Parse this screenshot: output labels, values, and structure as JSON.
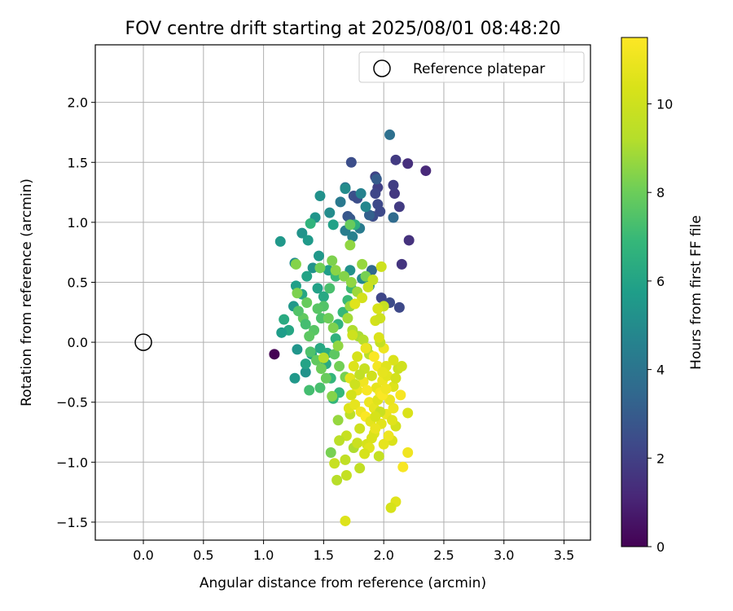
{
  "chart_data": {
    "type": "scatter",
    "title": "FOV centre drift starting at 2025/08/01 08:48:20",
    "xlabel": "Angular distance from reference (arcmin)",
    "ylabel": "Rotation from reference (arcmin)",
    "xlim": [
      -0.4,
      3.72
    ],
    "ylim": [
      -1.65,
      2.48
    ],
    "xticks": [
      0.0,
      0.5,
      1.0,
      1.5,
      2.0,
      2.5,
      3.0,
      3.5
    ],
    "xtick_labels": [
      "0.0",
      "0.5",
      "1.0",
      "1.5",
      "2.0",
      "2.5",
      "3.0",
      "3.5"
    ],
    "yticks": [
      -1.5,
      -1.0,
      -0.5,
      0.0,
      0.5,
      1.0,
      1.5,
      2.0
    ],
    "ytick_labels": [
      "−1.5",
      "−1.0",
      "−0.5",
      "0.0",
      "0.5",
      "1.0",
      "1.5",
      "2.0"
    ],
    "grid": true,
    "legend": {
      "placement": "top-right",
      "entries": [
        "Reference platepar"
      ]
    },
    "colorbar": {
      "label": "Hours from first FF file",
      "colormap": "viridis",
      "range": [
        0,
        11.5
      ],
      "ticks": [
        0,
        2,
        4,
        6,
        8,
        10
      ],
      "tick_labels": [
        "0",
        "2",
        "4",
        "6",
        "8",
        "10"
      ]
    },
    "reference_point": {
      "x": 0.0,
      "y": 0.0
    },
    "series": [
      {
        "points": [
          [
            1.09,
            -0.1,
            0.0
          ],
          [
            2.35,
            1.43,
            1.2
          ],
          [
            2.2,
            1.49,
            1.4
          ],
          [
            2.21,
            0.85,
            1.5
          ],
          [
            2.15,
            0.65,
            1.6
          ],
          [
            2.1,
            1.52,
            1.8
          ],
          [
            2.13,
            1.13,
            1.8
          ],
          [
            2.09,
            1.24,
            1.7
          ],
          [
            2.08,
            1.31,
            1.9
          ],
          [
            1.95,
            1.29,
            2.0
          ],
          [
            1.93,
            1.38,
            2.1
          ],
          [
            1.93,
            1.24,
            2.2
          ],
          [
            1.95,
            1.15,
            2.3
          ],
          [
            1.97,
            1.09,
            2.3
          ],
          [
            1.91,
            1.05,
            2.4
          ],
          [
            1.98,
            0.37,
            2.2
          ],
          [
            2.05,
            0.33,
            2.4
          ],
          [
            2.13,
            0.29,
            2.3
          ],
          [
            1.73,
            1.5,
            2.5
          ],
          [
            1.75,
            1.22,
            2.6
          ],
          [
            1.78,
            1.2,
            2.5
          ],
          [
            1.7,
            1.05,
            2.8
          ],
          [
            1.72,
            1.03,
            2.9
          ],
          [
            1.94,
            1.36,
            3.0
          ],
          [
            1.88,
            1.06,
            3.2
          ],
          [
            2.08,
            1.04,
            3.6
          ],
          [
            2.05,
            1.73,
            3.8
          ],
          [
            1.9,
            0.6,
            3.5
          ],
          [
            1.68,
            1.29,
            4.0
          ],
          [
            1.64,
            1.17,
            4.2
          ],
          [
            1.68,
            0.93,
            4.4
          ],
          [
            1.74,
            0.88,
            4.5
          ],
          [
            1.81,
            1.24,
            4.6
          ],
          [
            1.85,
            1.13,
            4.8
          ],
          [
            1.8,
            0.95,
            4.3
          ],
          [
            1.55,
            1.08,
            5.0
          ],
          [
            1.47,
            1.22,
            5.2
          ],
          [
            1.43,
            1.04,
            5.4
          ],
          [
            1.32,
            0.91,
            5.3
          ],
          [
            1.14,
            0.84,
            5.5
          ],
          [
            1.37,
            0.85,
            5.6
          ],
          [
            1.58,
            0.98,
            5.9
          ],
          [
            1.68,
            1.28,
            5.0
          ],
          [
            1.76,
            0.98,
            6.5
          ],
          [
            1.39,
            0.99,
            6.7
          ],
          [
            1.26,
            0.66,
            5.1
          ],
          [
            1.41,
            0.62,
            5.3
          ],
          [
            1.46,
            0.72,
            5.5
          ],
          [
            1.54,
            0.6,
            5.7
          ],
          [
            1.72,
            0.6,
            5.2
          ],
          [
            1.82,
            0.53,
            4.9
          ],
          [
            1.88,
            0.47,
            5.0
          ],
          [
            1.36,
            0.55,
            6.0
          ],
          [
            1.27,
            0.47,
            5.8
          ],
          [
            1.32,
            0.4,
            6.1
          ],
          [
            1.45,
            0.45,
            5.9
          ],
          [
            1.5,
            0.38,
            6.2
          ],
          [
            1.25,
            0.3,
            5.5
          ],
          [
            1.17,
            0.19,
            6.3
          ],
          [
            1.21,
            0.1,
            6.1
          ],
          [
            1.15,
            0.08,
            5.7
          ],
          [
            1.28,
            -0.06,
            5.4
          ],
          [
            1.35,
            -0.25,
            5.3
          ],
          [
            1.26,
            -0.3,
            5.5
          ],
          [
            1.35,
            -0.18,
            6.0
          ],
          [
            1.4,
            -0.1,
            5.9
          ],
          [
            1.47,
            -0.05,
            6.2
          ],
          [
            1.52,
            -0.18,
            6.3
          ],
          [
            1.56,
            -0.3,
            6.8
          ],
          [
            1.63,
            -0.42,
            6.9
          ],
          [
            1.58,
            -0.47,
            6.8
          ],
          [
            1.38,
            -0.4,
            7.2
          ],
          [
            1.47,
            -0.38,
            7.3
          ],
          [
            1.53,
            -0.09,
            6.4
          ],
          [
            1.6,
            0.03,
            6.6
          ],
          [
            1.62,
            0.15,
            6.7
          ],
          [
            1.66,
            0.25,
            6.9
          ],
          [
            1.7,
            0.35,
            7.0
          ],
          [
            1.73,
            0.45,
            7.1
          ],
          [
            1.6,
            0.55,
            7.0
          ],
          [
            1.55,
            0.45,
            7.3
          ],
          [
            1.5,
            0.3,
            7.5
          ],
          [
            1.48,
            0.2,
            7.4
          ],
          [
            1.42,
            0.1,
            7.6
          ],
          [
            1.38,
            0.05,
            7.7
          ],
          [
            1.33,
            0.2,
            7.8
          ],
          [
            1.29,
            0.26,
            7.5
          ],
          [
            1.36,
            0.33,
            7.9
          ],
          [
            1.45,
            0.28,
            7.6
          ],
          [
            1.35,
            0.15,
            7.2
          ],
          [
            1.39,
            -0.08,
            7.4
          ],
          [
            1.44,
            -0.15,
            7.8
          ],
          [
            1.48,
            -0.22,
            8.0
          ],
          [
            1.52,
            -0.3,
            7.9
          ],
          [
            1.59,
            -0.1,
            7.7
          ],
          [
            1.63,
            -0.2,
            8.1
          ],
          [
            1.68,
            -0.29,
            8.2
          ],
          [
            1.58,
            0.12,
            8.3
          ],
          [
            1.54,
            0.2,
            8.0
          ],
          [
            1.47,
            0.62,
            8.1
          ],
          [
            1.57,
            0.68,
            8.3
          ],
          [
            1.6,
            0.6,
            8.5
          ],
          [
            1.67,
            0.55,
            8.4
          ],
          [
            1.73,
            0.5,
            8.6
          ],
          [
            1.78,
            0.42,
            8.8
          ],
          [
            1.72,
            0.3,
            8.7
          ],
          [
            1.7,
            0.2,
            8.9
          ],
          [
            1.74,
            0.1,
            9.1
          ],
          [
            1.79,
            0.05,
            9.0
          ],
          [
            1.83,
            0.02,
            9.2
          ],
          [
            1.86,
            -0.05,
            9.3
          ],
          [
            1.88,
            -0.1,
            9.4
          ],
          [
            1.72,
            0.81,
            8.6
          ],
          [
            1.72,
            0.98,
            7.9
          ],
          [
            1.28,
            0.41,
            8.3
          ],
          [
            1.27,
            0.65,
            8.4
          ],
          [
            1.82,
            0.65,
            8.7
          ],
          [
            1.85,
            0.55,
            8.2
          ],
          [
            1.62,
            -0.03,
            8.6
          ],
          [
            1.5,
            -0.13,
            9.2
          ],
          [
            1.57,
            -0.45,
            8.4
          ],
          [
            1.62,
            -0.65,
            8.7
          ],
          [
            1.72,
            -0.6,
            9.5
          ],
          [
            1.75,
            -0.88,
            9.1
          ],
          [
            1.78,
            -0.84,
            9.9
          ],
          [
            1.8,
            -0.72,
            10.0
          ],
          [
            1.69,
            -0.78,
            9.8
          ],
          [
            1.68,
            -0.98,
            9.6
          ],
          [
            1.63,
            -0.82,
            9.4
          ],
          [
            1.56,
            -0.92,
            8.2
          ],
          [
            1.59,
            -1.01,
            9.8
          ],
          [
            1.61,
            -1.15,
            9.3
          ],
          [
            1.69,
            -1.11,
            9.7
          ],
          [
            1.8,
            -1.05,
            9.6
          ],
          [
            1.68,
            -1.49,
            10.5
          ],
          [
            1.96,
            -0.95,
            9.7
          ],
          [
            1.86,
            -0.85,
            10.3
          ],
          [
            1.92,
            -0.76,
            10.5
          ],
          [
            1.98,
            -0.68,
            10.7
          ],
          [
            2.02,
            -0.6,
            10.9
          ],
          [
            2.08,
            -0.55,
            11.0
          ],
          [
            2.14,
            -0.44,
            11.3
          ],
          [
            2.2,
            -0.59,
            10.4
          ],
          [
            2.1,
            -0.7,
            10.2
          ],
          [
            2.07,
            -0.82,
            10.4
          ],
          [
            2.2,
            -0.92,
            11.1
          ],
          [
            2.16,
            -1.04,
            11.3
          ],
          [
            2.1,
            -1.33,
            10.6
          ],
          [
            2.06,
            -1.38,
            10.3
          ],
          [
            1.94,
            -0.38,
            10.8
          ],
          [
            1.99,
            -0.32,
            11.0
          ],
          [
            2.03,
            -0.28,
            10.7
          ],
          [
            1.95,
            -0.2,
            11.2
          ],
          [
            1.92,
            -0.12,
            11.4
          ],
          [
            1.85,
            -0.05,
            10.9
          ],
          [
            2.0,
            -0.05,
            11.0
          ],
          [
            1.97,
            0.0,
            9.7
          ],
          [
            1.96,
            0.04,
            10.4
          ],
          [
            1.93,
            0.18,
            10.2
          ],
          [
            1.97,
            0.2,
            10.0
          ],
          [
            2.0,
            0.3,
            9.8
          ],
          [
            1.95,
            0.28,
            10.3
          ],
          [
            1.98,
            0.63,
            10.0
          ],
          [
            1.91,
            0.52,
            9.7
          ],
          [
            1.87,
            0.46,
            9.9
          ],
          [
            1.82,
            0.37,
            10.2
          ],
          [
            1.76,
            0.32,
            10.6
          ],
          [
            1.74,
            0.06,
            10.0
          ],
          [
            1.78,
            -0.12,
            10.3
          ],
          [
            1.75,
            -0.2,
            10.5
          ],
          [
            1.72,
            -0.3,
            10.7
          ],
          [
            1.78,
            -0.4,
            10.9
          ],
          [
            1.83,
            -0.33,
            11.1
          ],
          [
            1.86,
            -0.4,
            11.3
          ],
          [
            1.88,
            -0.5,
            11.0
          ],
          [
            1.92,
            -0.55,
            10.8
          ],
          [
            1.95,
            -0.48,
            10.6
          ],
          [
            1.97,
            -0.42,
            11.2
          ],
          [
            2.05,
            -0.48,
            10.9
          ],
          [
            2.08,
            -0.37,
            10.5
          ],
          [
            2.1,
            -0.3,
            10.2
          ],
          [
            2.12,
            -0.22,
            9.9
          ],
          [
            2.15,
            -0.2,
            10.1
          ],
          [
            2.08,
            -0.15,
            10.4
          ],
          [
            2.02,
            -0.2,
            10.6
          ],
          [
            1.99,
            -0.25,
            10.8
          ],
          [
            1.9,
            -0.28,
            10.1
          ],
          [
            1.84,
            -0.22,
            9.8
          ],
          [
            1.8,
            -0.27,
            9.6
          ],
          [
            1.76,
            -0.35,
            10.0
          ],
          [
            1.73,
            -0.44,
            10.2
          ],
          [
            1.71,
            -0.55,
            10.5
          ],
          [
            1.76,
            -0.52,
            10.8
          ],
          [
            1.81,
            -0.58,
            11.1
          ],
          [
            1.85,
            -0.62,
            11.4
          ],
          [
            1.89,
            -0.66,
            10.7
          ],
          [
            1.93,
            -0.72,
            10.9
          ],
          [
            1.9,
            -0.8,
            10.4
          ],
          [
            1.88,
            -0.88,
            10.6
          ],
          [
            1.84,
            -0.93,
            10.3
          ],
          [
            2.0,
            -0.85,
            10.8
          ],
          [
            2.04,
            -0.78,
            11.0
          ],
          [
            2.07,
            -0.65,
            10.6
          ],
          [
            1.97,
            -0.58,
            9.9
          ],
          [
            1.93,
            -0.62,
            10.3
          ],
          [
            1.99,
            -0.44,
            11.4
          ],
          [
            2.02,
            -0.39,
            11.1
          ]
        ]
      }
    ]
  }
}
